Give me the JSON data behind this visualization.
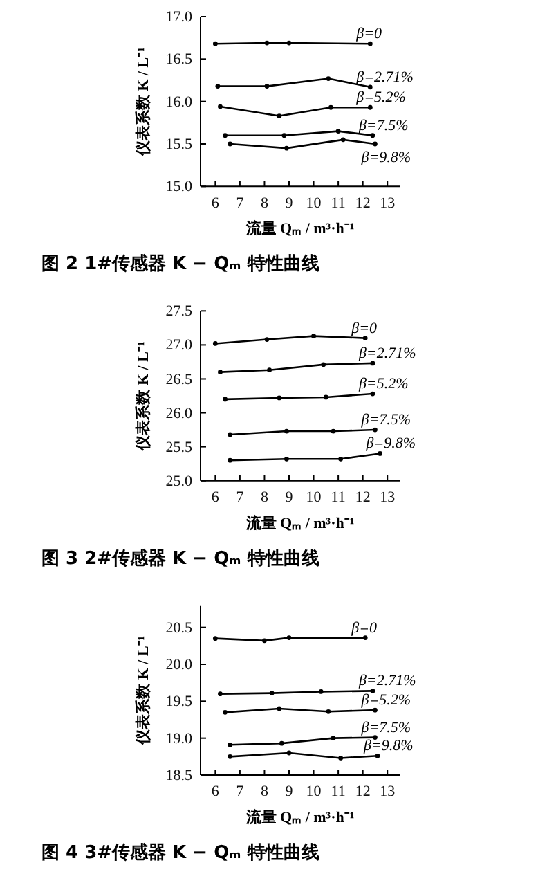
{
  "chart_data": [
    {
      "type": "line",
      "title": "图 2  1#传感器 K − Qₘ 特性曲线",
      "xlabel": "流量 Qₘ / m³·h⁻¹",
      "ylabel": "仪表系数 K / L⁻¹",
      "xlim": [
        5.4,
        13.5
      ],
      "xticks": [
        6,
        7,
        8,
        9,
        10,
        11,
        12,
        13
      ],
      "ylim": [
        15,
        17
      ],
      "yticks": [
        {
          "value": 15,
          "label": "15.0"
        },
        {
          "value": 15.5,
          "label": "15.5"
        },
        {
          "value": 16,
          "label": "16.0"
        },
        {
          "value": 16.5,
          "label": "16.5"
        },
        {
          "value": 17,
          "label": "17.0"
        }
      ],
      "marker": "circle",
      "legend": false,
      "grid": false,
      "series": [
        {
          "name": "β=0",
          "color": "#000000",
          "x": [
            6,
            8.1,
            9,
            12.3
          ],
          "values": [
            16.68,
            16.69,
            16.69,
            16.68
          ]
        },
        {
          "name": "β=2.71%",
          "color": "#000000",
          "x": [
            6.1,
            8.1,
            10.6,
            12.3
          ],
          "values": [
            16.18,
            16.18,
            16.27,
            16.17
          ]
        },
        {
          "name": "β=5.2%",
          "color": "#000000",
          "x": [
            6.2,
            8.6,
            10.7,
            12.3
          ],
          "values": [
            15.94,
            15.83,
            15.93,
            15.93
          ]
        },
        {
          "name": "β=7.5%",
          "color": "#000000",
          "x": [
            6.4,
            8.8,
            11,
            12.4
          ],
          "values": [
            15.6,
            15.6,
            15.65,
            15.6
          ]
        },
        {
          "name": "β=9.8%",
          "color": "#000000",
          "x": [
            6.6,
            8.9,
            11.2,
            12.5
          ],
          "values": [
            15.5,
            15.45,
            15.55,
            15.5
          ]
        }
      ]
    },
    {
      "type": "line",
      "title": "图 3  2#传感器 K − Qₘ 特性曲线",
      "xlabel": "流量 Qₘ / m³·h⁻¹",
      "ylabel": "仪表系数 K / L⁻¹",
      "xlim": [
        5.4,
        13.5
      ],
      "xticks": [
        6,
        7,
        8,
        9,
        10,
        11,
        12,
        13
      ],
      "ylim": [
        25,
        27.5
      ],
      "yticks": [
        {
          "value": 25,
          "label": "25.0"
        },
        {
          "value": 25.5,
          "label": "25.5"
        },
        {
          "value": 26,
          "label": "26.0"
        },
        {
          "value": 26.5,
          "label": "26.5"
        },
        {
          "value": 27,
          "label": "27.0"
        },
        {
          "value": 27.5,
          "label": "27.5"
        }
      ],
      "marker": "circle",
      "legend": false,
      "grid": false,
      "series": [
        {
          "name": "β=0",
          "color": "#000000",
          "x": [
            6,
            8.1,
            10,
            12.1
          ],
          "values": [
            27.02,
            27.08,
            27.13,
            27.1
          ]
        },
        {
          "name": "β=2.71%",
          "color": "#000000",
          "x": [
            6.2,
            8.2,
            10.4,
            12.4
          ],
          "values": [
            26.6,
            26.63,
            26.71,
            26.73
          ]
        },
        {
          "name": "β=5.2%",
          "color": "#000000",
          "x": [
            6.4,
            8.6,
            10.5,
            12.4
          ],
          "values": [
            26.2,
            26.22,
            26.23,
            26.28
          ]
        },
        {
          "name": "β=7.5%",
          "color": "#000000",
          "x": [
            6.6,
            8.9,
            10.8,
            12.5
          ],
          "values": [
            25.68,
            25.73,
            25.73,
            25.75
          ]
        },
        {
          "name": "β=9.8%",
          "color": "#000000",
          "x": [
            6.6,
            8.9,
            11.1,
            12.7
          ],
          "values": [
            25.3,
            25.32,
            25.32,
            25.4
          ]
        }
      ]
    },
    {
      "type": "line",
      "title": "图 4  3#传感器 K − Qₘ 特性曲线",
      "xlabel": "流量 Qₘ / m³·h⁻¹",
      "ylabel": "仪表系数 K / L⁻¹",
      "xlim": [
        5.4,
        13.5
      ],
      "xticks": [
        6,
        7,
        8,
        9,
        10,
        11,
        12,
        13
      ],
      "ylim": [
        18.5,
        20.8
      ],
      "yticks": [
        {
          "value": 18.5,
          "label": "18.5"
        },
        {
          "value": 19,
          "label": "19.0"
        },
        {
          "value": 19.5,
          "label": "19.5"
        },
        {
          "value": 20,
          "label": "20.0"
        },
        {
          "value": 20.5,
          "label": "20.5"
        }
      ],
      "marker": "circle",
      "legend": false,
      "grid": false,
      "series": [
        {
          "name": "β=0",
          "color": "#000000",
          "x": [
            6,
            8,
            9,
            12.1
          ],
          "values": [
            20.35,
            20.32,
            20.36,
            20.36
          ]
        },
        {
          "name": "β=2.71%",
          "color": "#000000",
          "x": [
            6.2,
            8.3,
            10.3,
            12.4
          ],
          "values": [
            19.6,
            19.61,
            19.63,
            19.64
          ]
        },
        {
          "name": "β=5.2%",
          "color": "#000000",
          "x": [
            6.4,
            8.6,
            10.6,
            12.5
          ],
          "values": [
            19.35,
            19.4,
            19.36,
            19.38
          ]
        },
        {
          "name": "β=7.5%",
          "color": "#000000",
          "x": [
            6.6,
            8.7,
            10.8,
            12.5
          ],
          "values": [
            18.91,
            18.93,
            19.0,
            19.01
          ]
        },
        {
          "name": "β=9.8%",
          "color": "#000000",
          "x": [
            6.6,
            9,
            11.1,
            12.6
          ],
          "values": [
            18.75,
            18.8,
            18.73,
            18.76
          ]
        }
      ]
    }
  ]
}
